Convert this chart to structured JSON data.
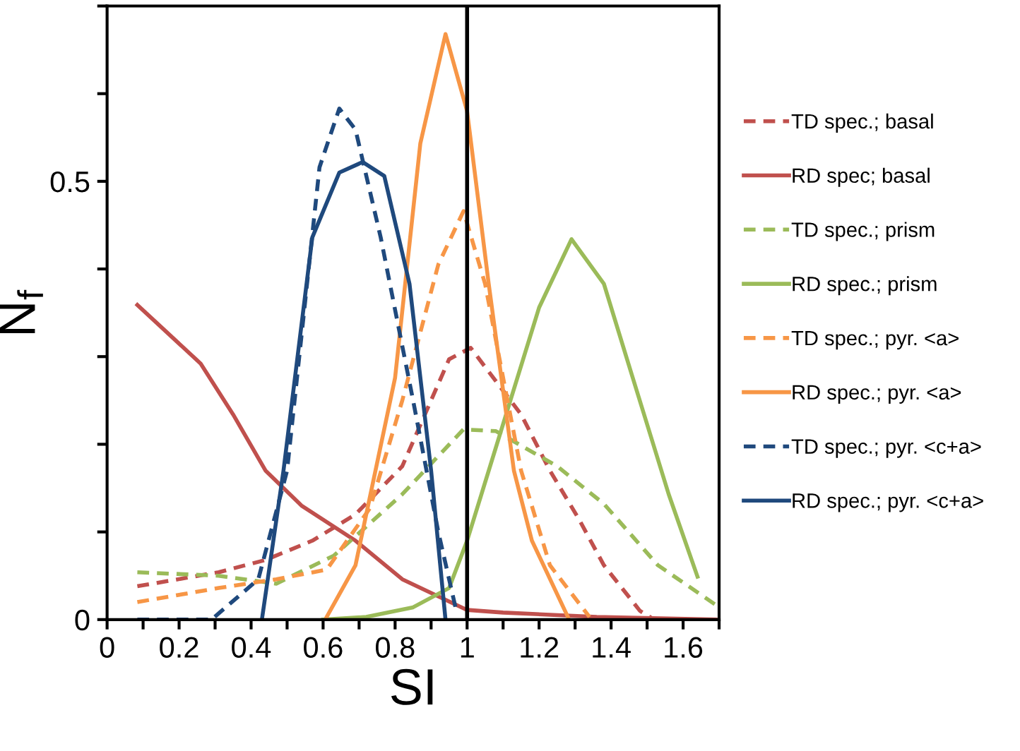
{
  "chart_data": {
    "type": "line",
    "xlabel": "SI",
    "ylabel": "N$_{f}$",
    "xlim": [
      0,
      1.7
    ],
    "ylim": [
      0,
      0.7
    ],
    "xticks": [
      0,
      {
        "value": 0.1,
        "label": null
      },
      0.2,
      {
        "value": 0.3,
        "label": null
      },
      0.4,
      {
        "value": 0.5,
        "label": null
      },
      0.6,
      {
        "value": 0.7,
        "label": null
      },
      0.8,
      {
        "value": 0.9,
        "label": null
      },
      1,
      {
        "value": 1.1,
        "label": null
      },
      1.2,
      {
        "value": 1.3,
        "label": null
      },
      1.4,
      {
        "value": 1.5,
        "label": null
      },
      1.6,
      {
        "value": 1.7,
        "label": null
      }
    ],
    "yticks": [
      0,
      {
        "value": 0.1,
        "label": null
      },
      {
        "value": 0.2,
        "label": null
      },
      {
        "value": 0.3,
        "label": null
      },
      {
        "value": 0.4,
        "label": null
      },
      0.5,
      {
        "value": 0.6,
        "label": null
      },
      {
        "value": 0.7,
        "label": null
      }
    ],
    "grid": false,
    "legend": "right",
    "marker": "none",
    "ref_lines": [
      {
        "axis": "x",
        "value": 1,
        "color": "#000000"
      }
    ],
    "series": [
      {
        "name": "TD spec.; basal",
        "color": "#c0504d",
        "line_style": "dashed",
        "x": [
          0.084,
          0.31,
          0.44,
          0.57,
          0.69,
          0.82,
          0.95,
          1.01,
          1.15,
          1.23,
          1.31,
          1.38,
          1.48,
          1.52
        ],
        "values": [
          0.038,
          0.054,
          0.068,
          0.09,
          0.12,
          0.175,
          0.297,
          0.31,
          0.234,
          0.17,
          0.115,
          0.062,
          0.01,
          0.0
        ]
      },
      {
        "name": "RD spec; basal",
        "color": "#c0504d",
        "line_style": "solid",
        "x": [
          0.084,
          0.26,
          0.35,
          0.44,
          0.54,
          0.69,
          0.82,
          1.0,
          1.1,
          1.36,
          1.69
        ],
        "values": [
          0.359,
          0.292,
          0.234,
          0.17,
          0.13,
          0.09,
          0.046,
          0.011,
          0.008,
          0.003,
          0.0
        ]
      },
      {
        "name": "TD spec.; prism",
        "color": "#9bbb59",
        "line_style": "dashed",
        "x": [
          0.084,
          0.31,
          0.47,
          0.63,
          0.82,
          0.99,
          1.08,
          1.25,
          1.38,
          1.53,
          1.69
        ],
        "values": [
          0.054,
          0.05,
          0.041,
          0.073,
          0.143,
          0.217,
          0.215,
          0.175,
          0.132,
          0.062,
          0.017
        ]
      },
      {
        "name": "RD spec.; prism",
        "color": "#9bbb59",
        "line_style": "solid",
        "x": [
          0.6,
          0.72,
          0.85,
          0.95,
          1.0,
          1.1,
          1.2,
          1.29,
          1.38,
          1.46,
          1.56,
          1.64
        ],
        "values": [
          0.0,
          0.003,
          0.014,
          0.036,
          0.09,
          0.223,
          0.356,
          0.434,
          0.383,
          0.276,
          0.143,
          0.049
        ]
      },
      {
        "name": "TD spec.; pyr. <a>",
        "color": "#f79646",
        "line_style": "dashed",
        "x": [
          0.084,
          0.31,
          0.47,
          0.61,
          0.73,
          0.82,
          0.92,
          0.99,
          1.05,
          1.1,
          1.15,
          1.23,
          1.34
        ],
        "values": [
          0.02,
          0.036,
          0.046,
          0.057,
          0.127,
          0.25,
          0.405,
          0.466,
          0.383,
          0.276,
          0.17,
          0.062,
          0.003
        ]
      },
      {
        "name": "RD spec.; pyr. <a>",
        "color": "#f79646",
        "line_style": "solid",
        "x": [
          0.61,
          0.69,
          0.8,
          0.87,
          0.94,
          1.0,
          1.06,
          1.13,
          1.18,
          1.28
        ],
        "values": [
          0.003,
          0.062,
          0.276,
          0.543,
          0.668,
          0.58,
          0.383,
          0.17,
          0.09,
          0.003
        ]
      },
      {
        "name": "TD spec.; pyr. <c+a>",
        "color": "#1f497d",
        "line_style": "dashed",
        "x": [
          0.084,
          0.29,
          0.42,
          0.5,
          0.59,
          0.645,
          0.69,
          0.76,
          0.85,
          0.92,
          0.97
        ],
        "values": [
          0.0,
          0.0,
          0.046,
          0.17,
          0.516,
          0.583,
          0.559,
          0.436,
          0.25,
          0.1,
          0.01
        ]
      },
      {
        "name": "RD spec.; pyr. <c+a>",
        "color": "#1f497d",
        "line_style": "solid",
        "x": [
          0.43,
          0.49,
          0.57,
          0.645,
          0.71,
          0.77,
          0.84,
          0.9,
          0.94
        ],
        "values": [
          0.0,
          0.17,
          0.436,
          0.51,
          0.522,
          0.506,
          0.383,
          0.17,
          0.0
        ]
      }
    ]
  }
}
